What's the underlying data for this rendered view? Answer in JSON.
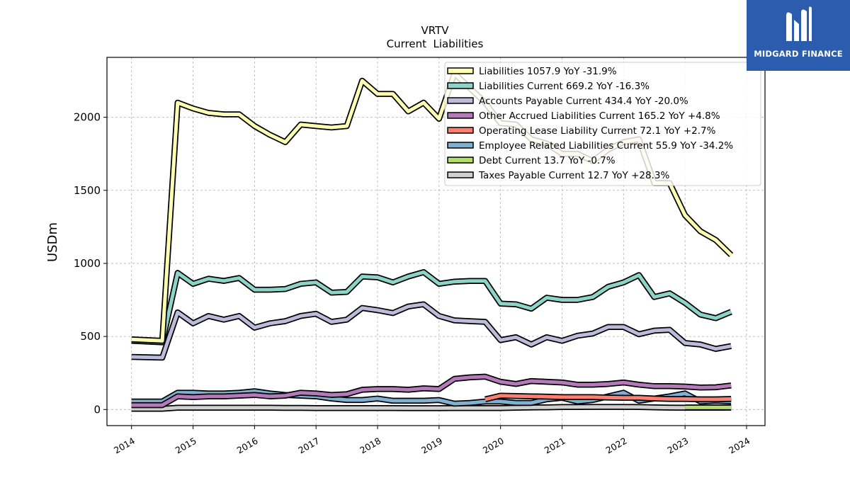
{
  "brand": {
    "name": "MIDGARD FINANCE",
    "color": "#2b5cad"
  },
  "chart_data": {
    "type": "line",
    "title": "VRTV",
    "subtitle": "Current  Liabilities",
    "ylabel": "USDm",
    "xlabel": "",
    "xlim": [
      2013.6,
      2024.3
    ],
    "ylim": [
      -110,
      2410
    ],
    "xticks": [
      2014,
      2015,
      2016,
      2017,
      2018,
      2019,
      2020,
      2021,
      2022,
      2023,
      2024
    ],
    "yticks": [
      0,
      500,
      1000,
      1500,
      2000
    ],
    "grid": true,
    "legend_position": "top-right",
    "x": [
      2014.0,
      2014.5,
      2014.75,
      2015.0,
      2015.25,
      2015.5,
      2015.75,
      2016.0,
      2016.25,
      2016.5,
      2016.75,
      2017.0,
      2017.25,
      2017.5,
      2017.75,
      2018.0,
      2018.25,
      2018.5,
      2018.75,
      2019.0,
      2019.25,
      2019.5,
      2019.75,
      2020.0,
      2020.25,
      2020.5,
      2020.75,
      2021.0,
      2021.25,
      2021.5,
      2021.75,
      2022.0,
      2022.25,
      2022.5,
      2022.75,
      2023.0,
      2023.25,
      2023.5,
      2023.75
    ],
    "series": [
      {
        "name": "Liabilities",
        "legend": "Liabilities  1057.9 YoY -31.9%",
        "color": "#ffffb3",
        "values": [
          480,
          470,
          2100,
          2060,
          2030,
          2020,
          2020,
          1940,
          1880,
          1830,
          1950,
          1940,
          1930,
          1940,
          2250,
          2160,
          2160,
          2040,
          2100,
          1990,
          2300,
          2200,
          2100,
          1960,
          1950,
          1850,
          1820,
          1750,
          1750,
          1700,
          1780,
          1830,
          1850,
          1550,
          1550,
          1330,
          1220,
          1160,
          1058
        ]
      },
      {
        "name": "Liabilities Current",
        "legend": "Liabilities Current  669.2 YoY -16.3%",
        "color": "#8dd3c7",
        "values": [
          470,
          460,
          935,
          860,
          895,
          880,
          900,
          820,
          820,
          825,
          860,
          870,
          800,
          805,
          910,
          905,
          870,
          910,
          940,
          860,
          875,
          880,
          880,
          725,
          720,
          690,
          765,
          750,
          750,
          770,
          840,
          870,
          920,
          770,
          795,
          730,
          650,
          625,
          669
        ]
      },
      {
        "name": "Accounts Payable Current",
        "legend": "Accounts Payable Current  434.4 YoY -20.0%",
        "color": "#bebada",
        "values": [
          360,
          355,
          665,
          590,
          640,
          615,
          640,
          560,
          590,
          605,
          640,
          655,
          600,
          615,
          695,
          680,
          660,
          705,
          720,
          640,
          610,
          605,
          600,
          475,
          495,
          445,
          495,
          470,
          505,
          520,
          565,
          565,
          515,
          540,
          545,
          455,
          445,
          415,
          434
        ]
      },
      {
        "name": "Other Accrued Liabilities Current",
        "legend": "Other Accrued Liabilities Current  165.2 YoY +4.8%",
        "color": "#b57ab9",
        "values": [
          30,
          30,
          90,
          85,
          90,
          90,
          95,
          100,
          90,
          95,
          115,
          110,
          100,
          105,
          135,
          140,
          140,
          135,
          145,
          140,
          210,
          220,
          225,
          190,
          175,
          195,
          190,
          185,
          170,
          170,
          175,
          185,
          170,
          160,
          160,
          157,
          150,
          152,
          165
        ]
      },
      {
        "name": "Operating Lease Liability Current",
        "legend": "Operating Lease Liability Current  72.1 YoY +2.7%",
        "color": "#fb8072",
        "values": [
          null,
          null,
          null,
          null,
          null,
          null,
          null,
          null,
          null,
          null,
          null,
          null,
          null,
          null,
          null,
          null,
          null,
          null,
          null,
          null,
          null,
          null,
          70,
          95,
          92,
          90,
          88,
          85,
          85,
          85,
          82,
          80,
          80,
          75,
          72,
          72,
          70,
          70,
          72
        ]
      },
      {
        "name": "Employee Related Liabilities Current",
        "legend": "Employee Related Liabilities Current  55.9 YoY -34.2%",
        "color": "#80b1d3",
        "values": [
          55,
          55,
          115,
          115,
          110,
          110,
          115,
          125,
          110,
          100,
          95,
          90,
          75,
          65,
          65,
          75,
          60,
          60,
          60,
          65,
          40,
          45,
          55,
          55,
          45,
          45,
          70,
          80,
          55,
          65,
          90,
          115,
          60,
          75,
          90,
          110,
          55,
          60,
          56
        ]
      },
      {
        "name": "Debt Current",
        "legend": "Debt Current  13.7 YoY -0.7%",
        "color": "#b3de69",
        "values": [
          null,
          null,
          null,
          null,
          null,
          null,
          null,
          null,
          null,
          null,
          null,
          null,
          null,
          null,
          null,
          null,
          null,
          null,
          null,
          null,
          null,
          null,
          null,
          null,
          null,
          null,
          null,
          null,
          null,
          null,
          null,
          null,
          null,
          null,
          null,
          14,
          14,
          14,
          14
        ]
      },
      {
        "name": "Taxes Payable Current",
        "legend": "Taxes Payable Current  12.7 YoY +28.3%",
        "color": "#d0d0d0",
        "values": [
          5,
          5,
          12,
          12,
          12,
          12,
          12,
          12,
          12,
          11,
          11,
          10,
          10,
          10,
          10,
          10,
          10,
          9,
          9,
          9,
          10,
          10,
          10,
          10,
          12,
          14,
          15,
          17,
          17,
          18,
          18,
          18,
          17,
          15,
          13,
          12,
          12,
          12,
          13
        ]
      }
    ]
  }
}
